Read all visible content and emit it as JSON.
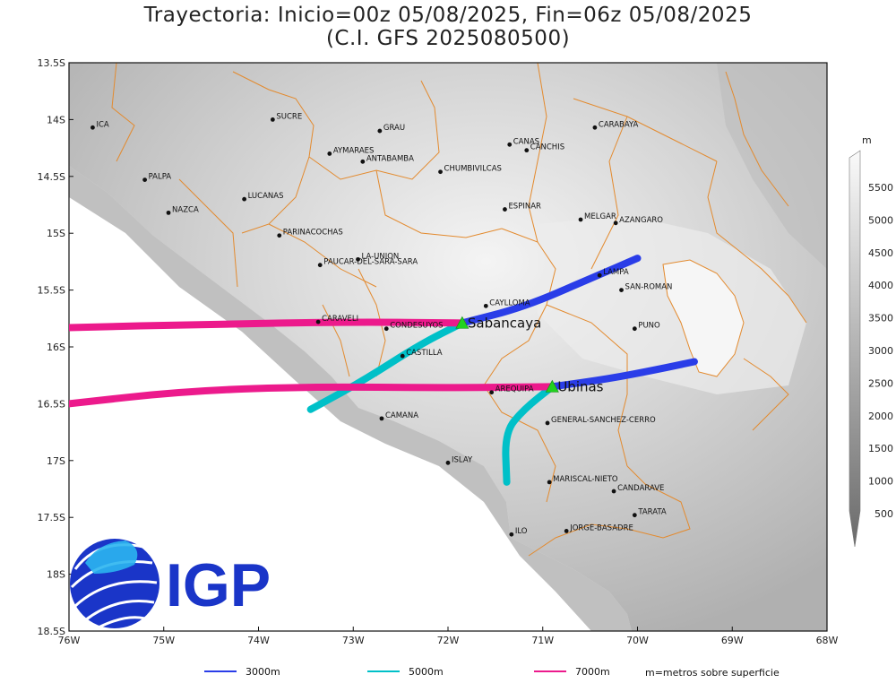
{
  "title": {
    "line1": "Trayectoria: Inicio=00z 05/08/2025, Fin=06z 05/08/2025",
    "line2": "(C.I. GFS 2025080500)"
  },
  "map": {
    "lon_range": [
      -76,
      -68
    ],
    "lat_range": [
      -18.5,
      -13.5
    ],
    "x_ticks": [
      "76W",
      "75W",
      "74W",
      "73W",
      "72W",
      "71W",
      "70W",
      "69W",
      "68W"
    ],
    "y_ticks": [
      "13.5S",
      "14S",
      "14.5S",
      "15S",
      "15.5S",
      "16S",
      "16.5S",
      "17S",
      "17.5S",
      "18S",
      "18.5S"
    ]
  },
  "places": [
    {
      "name": "ICA",
      "lon": -75.75,
      "lat": -14.07
    },
    {
      "name": "SUCRE",
      "lon": -73.85,
      "lat": -14.0
    },
    {
      "name": "GRAU",
      "lon": -72.72,
      "lat": -14.1
    },
    {
      "name": "CANAS",
      "lon": -71.35,
      "lat": -14.22
    },
    {
      "name": "CANCHIS",
      "lon": -71.17,
      "lat": -14.27
    },
    {
      "name": "CARABAYA",
      "lon": -70.45,
      "lat": -14.07
    },
    {
      "name": "AYMARAES",
      "lon": -73.25,
      "lat": -14.3
    },
    {
      "name": "ANTABAMBA",
      "lon": -72.9,
      "lat": -14.37
    },
    {
      "name": "CHUMBIVILCAS",
      "lon": -72.08,
      "lat": -14.46
    },
    {
      "name": "PALPA",
      "lon": -75.2,
      "lat": -14.53
    },
    {
      "name": "LUCANAS",
      "lon": -74.15,
      "lat": -14.7
    },
    {
      "name": "NAZCA",
      "lon": -74.95,
      "lat": -14.82
    },
    {
      "name": "ESPINAR",
      "lon": -71.4,
      "lat": -14.79
    },
    {
      "name": "MELGAR",
      "lon": -70.6,
      "lat": -14.88
    },
    {
      "name": "AZANGARO",
      "lon": -70.23,
      "lat": -14.91
    },
    {
      "name": "PARINACOCHAS",
      "lon": -73.78,
      "lat": -15.02
    },
    {
      "name": "LA-UNION",
      "lon": -72.95,
      "lat": -15.23
    },
    {
      "name": "PAUCAR-DEL-SARA-SARA",
      "lon": -73.35,
      "lat": -15.28
    },
    {
      "name": "LAMPA",
      "lon": -70.4,
      "lat": -15.37
    },
    {
      "name": "SAN-ROMAN",
      "lon": -70.17,
      "lat": -15.5
    },
    {
      "name": "CAYLLOMA",
      "lon": -71.6,
      "lat": -15.64
    },
    {
      "name": "CARAVELI",
      "lon": -73.37,
      "lat": -15.78
    },
    {
      "name": "CONDESUYOS",
      "lon": -72.65,
      "lat": -15.84
    },
    {
      "name": "PUNO",
      "lon": -70.03,
      "lat": -15.84
    },
    {
      "name": "CASTILLA",
      "lon": -72.48,
      "lat": -16.08
    },
    {
      "name": "AREQUIPA",
      "lon": -71.54,
      "lat": -16.4
    },
    {
      "name": "GENERAL-SANCHEZ-CERRO",
      "lon": -70.95,
      "lat": -16.67
    },
    {
      "name": "CAMANA",
      "lon": -72.7,
      "lat": -16.63
    },
    {
      "name": "ISLAY",
      "lon": -72.0,
      "lat": -17.02
    },
    {
      "name": "MARISCAL-NIETO",
      "lon": -70.93,
      "lat": -17.19
    },
    {
      "name": "CANDARAVE",
      "lon": -70.25,
      "lat": -17.27
    },
    {
      "name": "TARATA",
      "lon": -70.03,
      "lat": -17.48
    },
    {
      "name": "ILO",
      "lon": -71.33,
      "lat": -17.65
    },
    {
      "name": "JORGE-BASADRE",
      "lon": -70.75,
      "lat": -17.62
    }
  ],
  "volcanoes": [
    {
      "name": "Sabancaya",
      "lon": -71.85,
      "lat": -15.79
    },
    {
      "name": "Ubinas",
      "lon": -70.9,
      "lat": -16.35
    }
  ],
  "trajectories": [
    {
      "volcano": "Sabancaya",
      "level": "3000m",
      "color": "#2a3de8",
      "path": [
        [
          -71.85,
          -15.79
        ],
        [
          -71.2,
          -15.65
        ],
        [
          -70.5,
          -15.4
        ],
        [
          -70.0,
          -15.22
        ]
      ]
    },
    {
      "volcano": "Sabancaya",
      "level": "5000m",
      "color": "#00c0c8",
      "path": [
        [
          -71.85,
          -15.79
        ],
        [
          -72.3,
          -15.98
        ],
        [
          -72.9,
          -16.3
        ],
        [
          -73.45,
          -16.55
        ]
      ]
    },
    {
      "volcano": "Sabancaya",
      "level": "7000m",
      "color": "#ec1a8c",
      "path": [
        [
          -71.85,
          -15.79
        ],
        [
          -73.0,
          -15.78
        ],
        [
          -74.5,
          -15.8
        ],
        [
          -76.0,
          -15.83
        ]
      ]
    },
    {
      "volcano": "Ubinas",
      "level": "3000m",
      "color": "#2a3de8",
      "path": [
        [
          -70.9,
          -16.35
        ],
        [
          -70.3,
          -16.28
        ],
        [
          -69.8,
          -16.2
        ],
        [
          -69.4,
          -16.13
        ]
      ]
    },
    {
      "volcano": "Ubinas",
      "level": "5000m",
      "color": "#00c0c8",
      "path": [
        [
          -70.9,
          -16.35
        ],
        [
          -71.2,
          -16.55
        ],
        [
          -71.4,
          -16.75
        ],
        [
          -71.38,
          -17.19
        ]
      ]
    },
    {
      "volcano": "Ubinas",
      "level": "7000m",
      "color": "#ec1a8c",
      "path": [
        [
          -70.9,
          -16.35
        ],
        [
          -72.0,
          -16.36
        ],
        [
          -73.5,
          -16.35
        ],
        [
          -74.8,
          -16.39
        ],
        [
          -76.0,
          -16.5
        ]
      ]
    }
  ],
  "legend": [
    {
      "label": "3000m",
      "color": "#2a3de8"
    },
    {
      "label": "5000m",
      "color": "#00c0c8"
    },
    {
      "label": "7000m",
      "color": "#ec1a8c"
    }
  ],
  "legend_note": "m=metros sobre superficie",
  "colorbar": {
    "unit": "m",
    "labels": [
      "5500",
      "5000",
      "4500",
      "4000",
      "3500",
      "3000",
      "2500",
      "2000",
      "1500",
      "1000",
      "500"
    ]
  },
  "logo_text": "IGP"
}
